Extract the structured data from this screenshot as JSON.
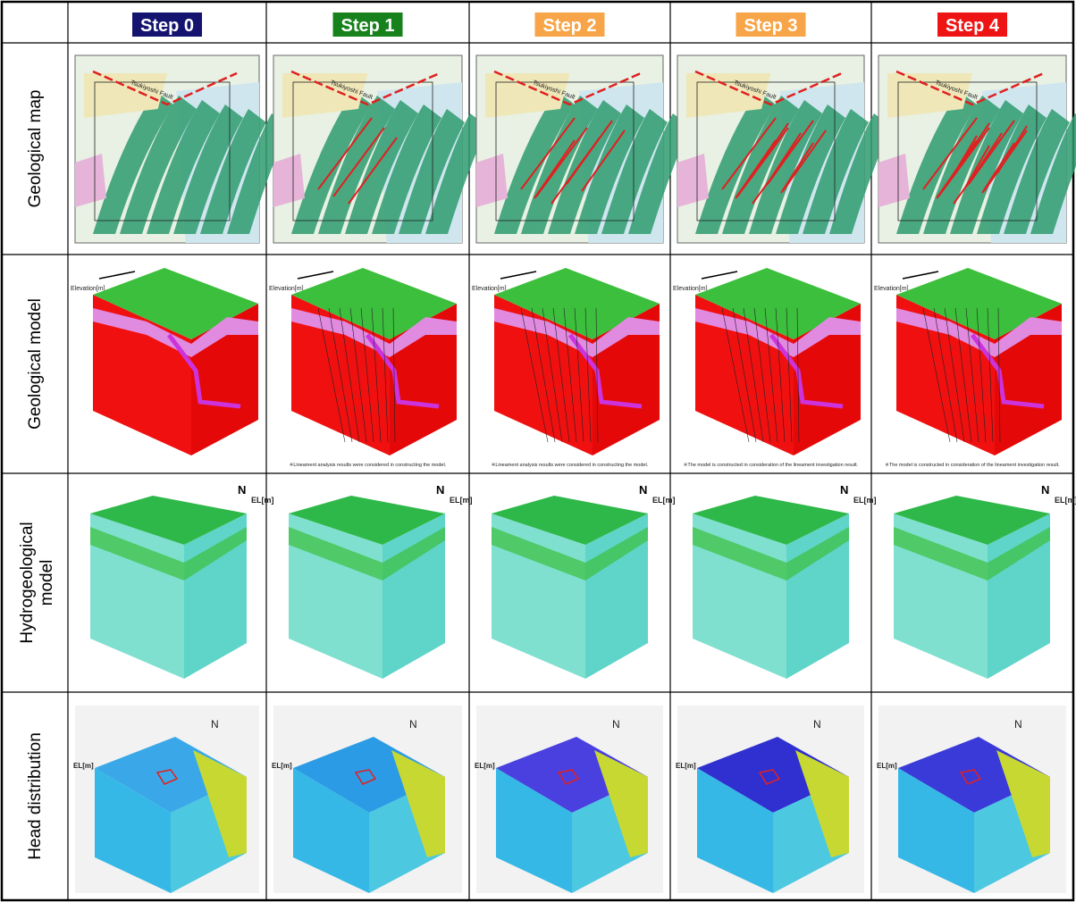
{
  "columns": [
    "Step 0",
    "Step 1",
    "Step 2",
    "Step 3",
    "Step 4"
  ],
  "rows": [
    "Geological map",
    "Geological model",
    "Hydrogeological model",
    "Head distribution"
  ],
  "map_fault_labels": [
    "Tsukiyoshi Fault",
    "Tsukiyoshi Fault",
    "Tsukiyoshi Fault",
    "Tsukiyoshi Fault",
    "Tsukiyoshi Fault"
  ],
  "model_axis_labels": [
    "Elevation[m]",
    "Elevation[m]",
    "Elevation[m]",
    "Elevation[m]",
    "Elevation[m]"
  ],
  "model_captions": [
    "※Lineament analysis results were considered in constructing the model.",
    "※Lineament analysis results were considered in constructing the model.",
    "※The model is constructed in consideration of the lineament investigation result.",
    "※The model is constructed in consideration of the lineament investigation result."
  ],
  "north_labels": [
    "N",
    "N",
    "N",
    "N",
    "N"
  ],
  "el_labels": [
    "EL[m]",
    "EL[m]",
    "EL[m]",
    "EL[m]",
    "EL[m]"
  ]
}
